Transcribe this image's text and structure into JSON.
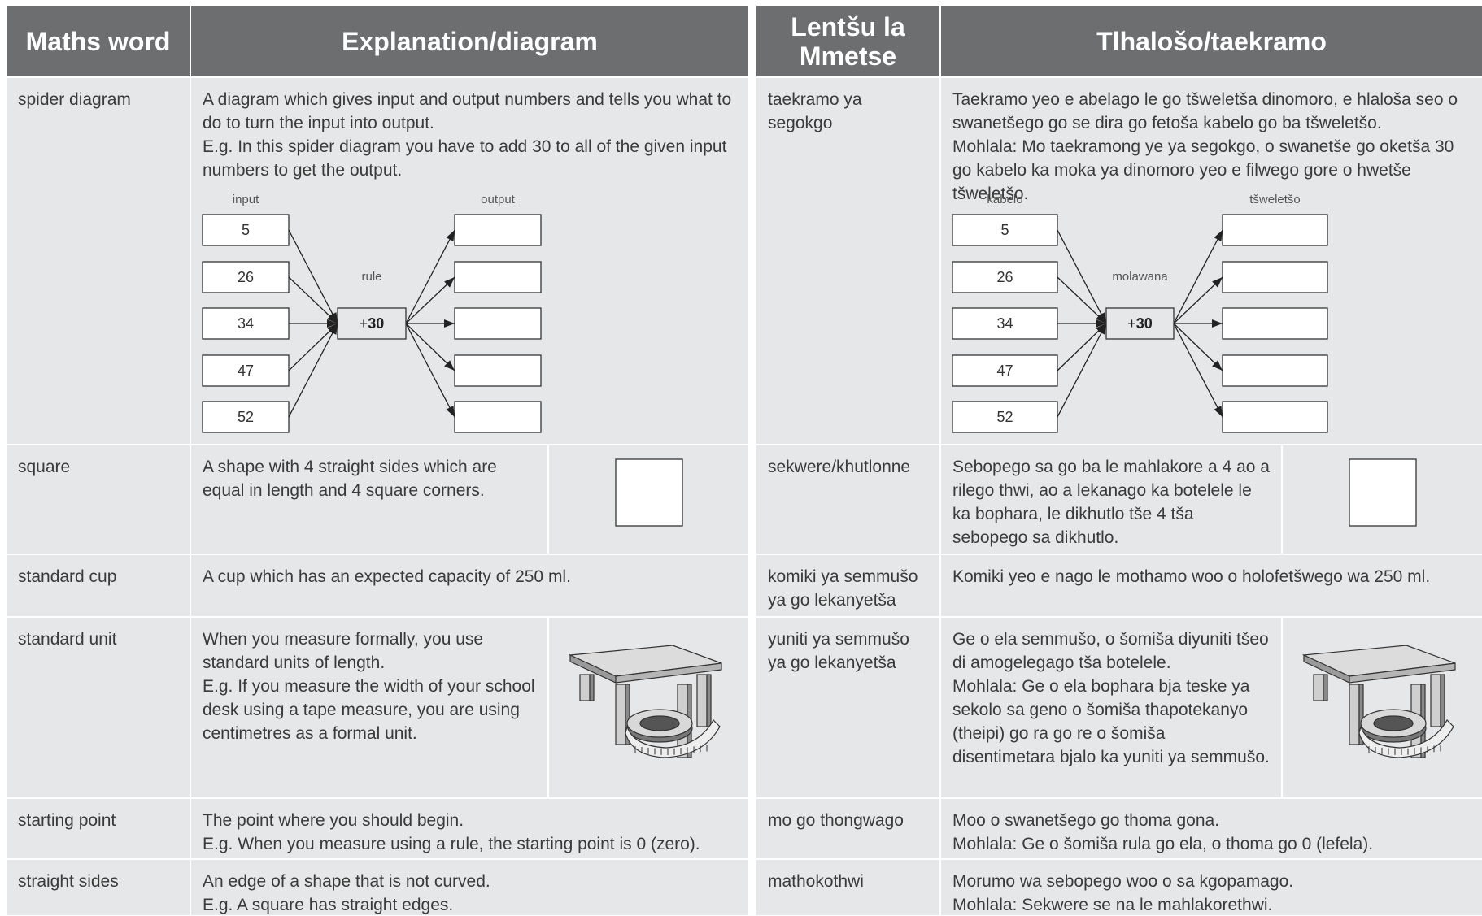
{
  "tables": [
    {
      "headers": [
        "Maths word",
        "Explanation/diagram"
      ],
      "rows": [
        {
          "term": "spider diagram",
          "text": [
            "A diagram which gives input and output numbers and tells you what to do to turn the input into output.",
            "E.g. In this spider diagram you have to add 30 to all of the given input numbers to get the output."
          ],
          "diagram": {
            "input_label": "input",
            "output_label": "output",
            "rule_label": "rule",
            "inputs": [
              "5",
              "26",
              "34",
              "47",
              "52"
            ],
            "rule_sign": "+",
            "rule_number": "30"
          }
        },
        {
          "term": "square",
          "text": [
            "A shape with 4 straight sides which are equal in length and 4 square corners."
          ]
        },
        {
          "term": "standard cup",
          "text": [
            "A cup which has an expected capacity of 250 ml."
          ]
        },
        {
          "term": "standard unit",
          "text": [
            "When you measure formally, you use standard units of length.",
            "E.g. If you measure the width of your school desk using a tape measure, you are using centimetres as a formal unit."
          ]
        },
        {
          "term": "starting point",
          "text": [
            "The point where you should begin.",
            "E.g. When you measure using a rule, the starting point is 0 (zero)."
          ]
        },
        {
          "term": "straight sides",
          "text": [
            "An edge of a shape that is not curved.",
            "E.g. A square has straight edges."
          ]
        }
      ]
    },
    {
      "headers": [
        "Lentšu la Mmetse",
        "Tlhalošo/taekramo"
      ],
      "rows": [
        {
          "term": "taekramo ya segokgo",
          "text": [
            "Taekramo yeo e abelago le go tšweletša dinomoro, e hlaloša seo o swanetšego go se dira go fetoša kabelo go ba tšweletšo.",
            "Mohlala: Mo taekramong ye ya segokgo, o swanetše go oketša 30 go kabelo ka moka ya dinomoro yeo e filwego gore o hwetše tšweletšo."
          ],
          "diagram": {
            "input_label": "kabelo",
            "output_label": "tšweletšo",
            "rule_label": "molawana",
            "inputs": [
              "5",
              "26",
              "34",
              "47",
              "52"
            ],
            "rule_sign": "+",
            "rule_number": "30"
          }
        },
        {
          "term": "sekwere/khutlonne",
          "text": [
            "Sebopego sa go ba le mahlakore a 4 ao a rilego thwi, ao a lekanago ka botelele le ka bophara, le dikhutlo tše 4 tša sebopego sa dikhutlo."
          ]
        },
        {
          "term": "komiki ya semmušo ya go lekanyetša",
          "text": [
            "Komiki yeo e nago le mothamo woo o holofetšwego wa 250 ml."
          ]
        },
        {
          "term": "yuniti ya semmušo ya go lekanyetša",
          "text": [
            "Ge o ela semmušo, o šomiša diyuniti tšeo di amogelegago tša botelele.",
            "Mohlala: Ge o ela bophara bja teske ya sekolo sa geno o šomiša thapotekanyo (theipi) go ra go re o šomiša disentimetara bjalo ka yuniti ya semmušo."
          ]
        },
        {
          "term": "mo go thongwago",
          "text": [
            "Moo o swanetšego go thoma gona.",
            "Mohlala: Ge o šomiša rula go ela, o thoma go 0 (lefela)."
          ]
        },
        {
          "term": "mathokothwi",
          "text": [
            "Morumo wa sebopego woo o sa kgopamago.",
            "Mohlala: Sekwere se na le mahlakorethwi."
          ]
        }
      ]
    }
  ]
}
